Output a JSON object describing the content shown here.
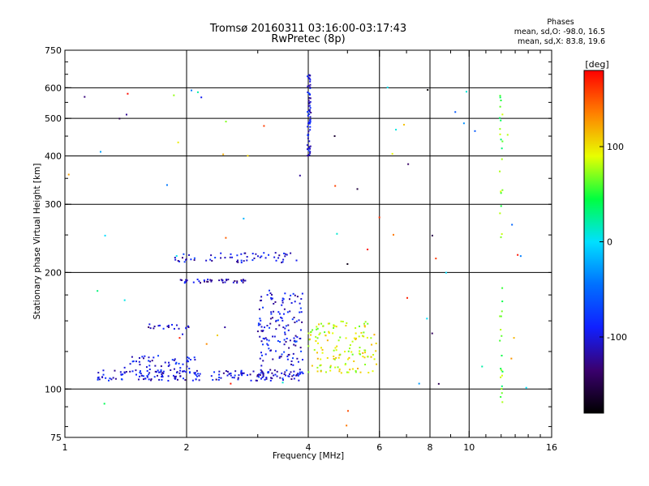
{
  "header": {
    "title_line1": "Tromsø 20160311 03:16:00-03:17:43",
    "title_line2": "RwPretec (8p)"
  },
  "phase_info": {
    "title": "Phases",
    "line_o": "mean, sd,O: -98.0, 16.5",
    "line_x": "mean, sd,X:  83.8, 19.6"
  },
  "chart_data": {
    "type": "scatter",
    "xlabel": "Frequency [MHz]",
    "ylabel": "Stationary phase Virtual Height [km]",
    "x_scale": "log",
    "y_scale": "log",
    "xlim": [
      1,
      16
    ],
    "ylim": [
      75,
      750
    ],
    "x_ticks": [
      1,
      2,
      4,
      6,
      8,
      10,
      16
    ],
    "y_ticks": [
      75,
      100,
      200,
      300,
      400,
      500,
      600,
      750
    ],
    "x_gridlines": [
      2,
      4,
      6,
      8,
      10
    ],
    "y_gridlines": [
      100,
      200,
      300,
      400,
      500,
      600
    ],
    "grid": true,
    "colorbar": {
      "label": "[deg]",
      "range": [
        -180,
        180
      ],
      "ticks": [
        100,
        0,
        -100
      ],
      "colors": [
        "#000000",
        "#3a006e",
        "#1020ff",
        "#0070ff",
        "#00e0ff",
        "#00ff40",
        "#e8ff00",
        "#ff8000",
        "#ff0000"
      ]
    },
    "traces": [
      {
        "name": "lower echo trace",
        "x_range": [
          1.2,
          3.9
        ],
        "h_range": [
          105,
          112
        ],
        "phase": -100,
        "count": 180
      },
      {
        "name": "lower echo trace upper band",
        "x_range": [
          1.4,
          2.1
        ],
        "h_range": [
          110,
          122
        ],
        "phase": -100,
        "count": 60
      },
      {
        "name": "rising trace near 3-4 MHz",
        "x_range": [
          3.0,
          3.9
        ],
        "h_range": [
          108,
          180
        ],
        "phase": -100,
        "count": 150
      },
      {
        "name": "X-mode trace",
        "x_range": [
          4.0,
          5.9
        ],
        "h_range": [
          110,
          150
        ],
        "phase": 90,
        "count": 140
      },
      {
        "name": "layer at 190 km",
        "x_range": [
          1.9,
          2.8
        ],
        "h_range": [
          188,
          192
        ],
        "phase": -110,
        "count": 40
      },
      {
        "name": "layer at 145 km",
        "x_range": [
          1.6,
          2.05
        ],
        "h_range": [
          143,
          147
        ],
        "phase": -110,
        "count": 20
      },
      {
        "name": "layer at 220 km",
        "x_range": [
          1.85,
          3.8
        ],
        "h_range": [
          212,
          225
        ],
        "phase": -100,
        "count": 60
      },
      {
        "name": "upper trace near 4 MHz",
        "x_range": [
          3.98,
          4.06
        ],
        "h_range": [
          400,
          650
        ],
        "phase": -100,
        "count": 70
      },
      {
        "name": "column near 12 MHz",
        "x_range": [
          11.9,
          12.1
        ],
        "h_range": [
          90,
          610
        ],
        "phase": 60,
        "count": 40
      }
    ]
  }
}
